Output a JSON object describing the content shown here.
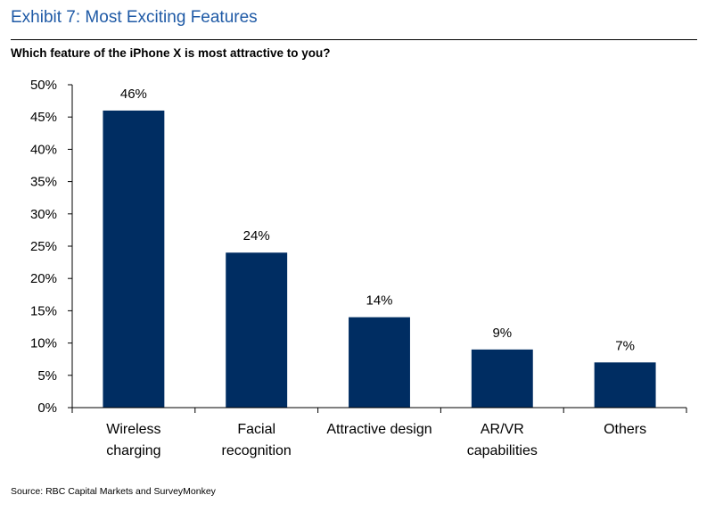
{
  "exhibit_title": "Exhibit 7: Most Exciting Features",
  "question": "Which feature of the iPhone X is most attractive to you?",
  "source": "Source: RBC Capital Markets and SurveyMonkey",
  "colors": {
    "title": "#1F5AA6",
    "bar": "#002D62"
  },
  "chart_data": {
    "type": "bar",
    "title": "Which feature of the iPhone X is most attractive to you?",
    "xlabel": "",
    "ylabel": "",
    "categories": [
      [
        "Wireless",
        "charging"
      ],
      [
        "Facial",
        "recognition"
      ],
      [
        "Attractive design"
      ],
      [
        "AR/VR",
        "capabilities"
      ],
      [
        "Others"
      ]
    ],
    "values": [
      46,
      24,
      14,
      9,
      7
    ],
    "data_labels": [
      "46%",
      "24%",
      "14%",
      "9%",
      "7%"
    ],
    "ylim": [
      0,
      50
    ],
    "yticks": [
      0,
      5,
      10,
      15,
      20,
      25,
      30,
      35,
      40,
      45,
      50
    ],
    "ytick_labels": [
      "0%",
      "5%",
      "10%",
      "15%",
      "20%",
      "25%",
      "30%",
      "35%",
      "40%",
      "45%",
      "50%"
    ],
    "grid": false,
    "legend": "none"
  }
}
